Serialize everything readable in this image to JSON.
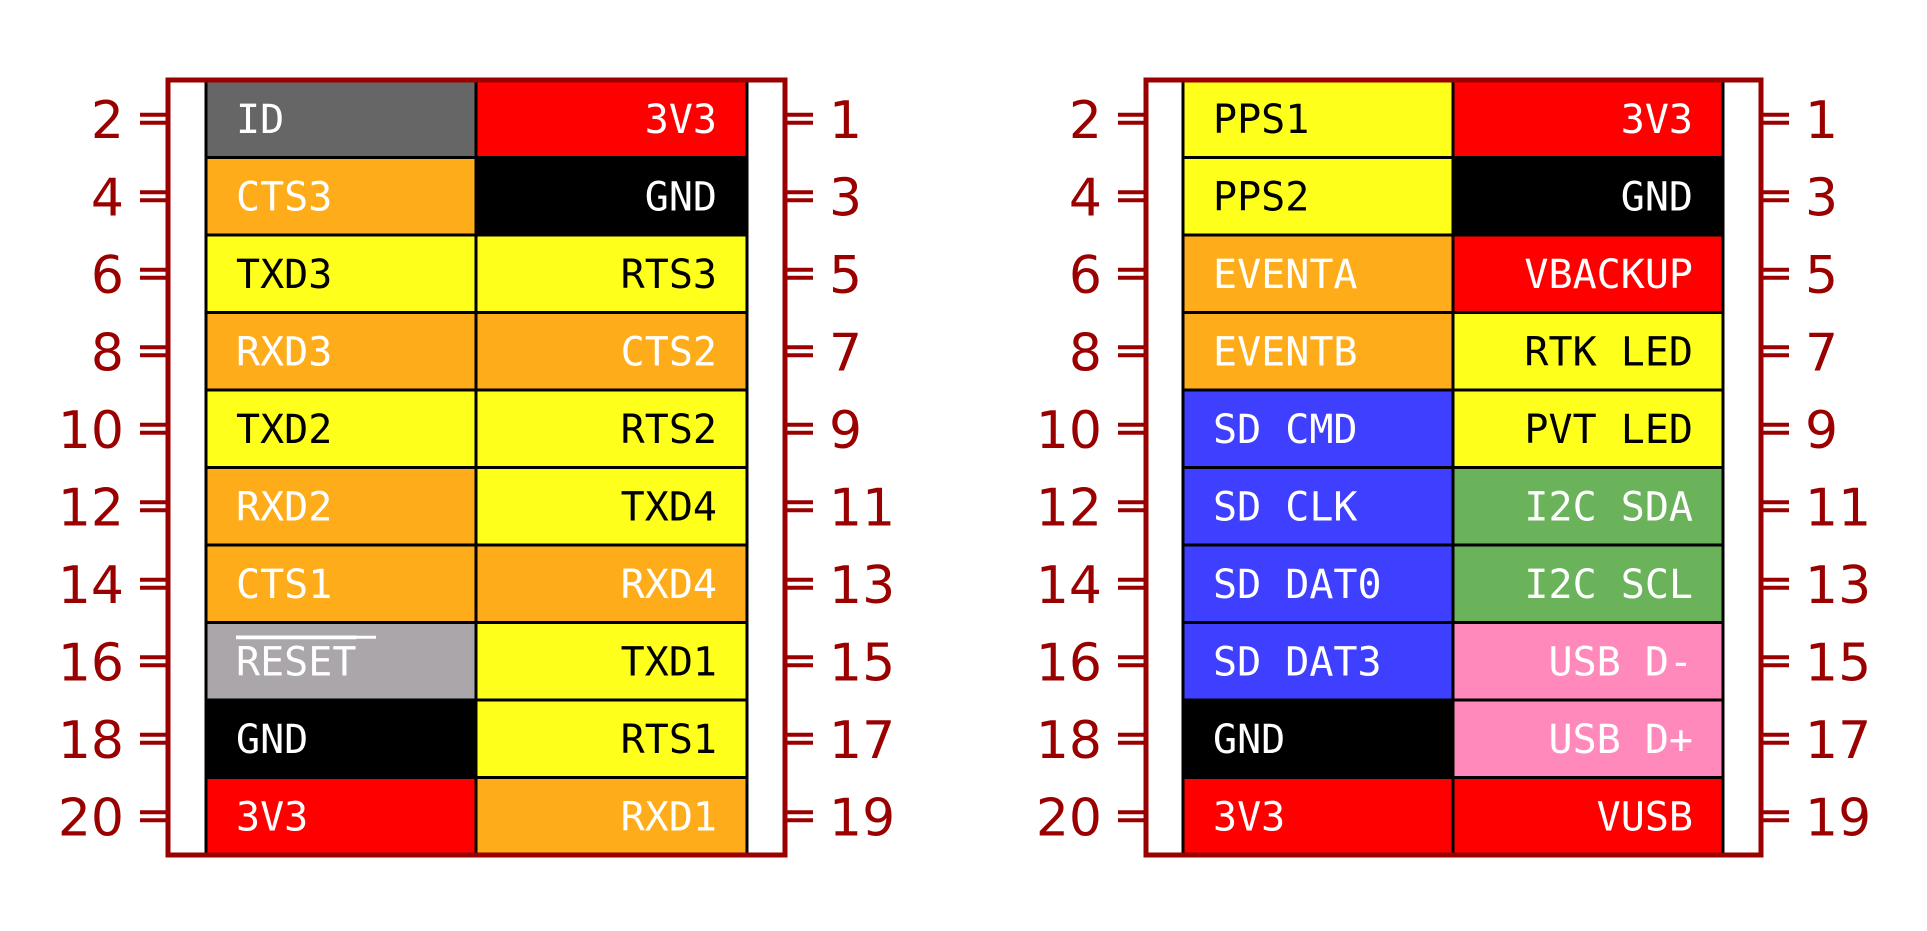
{
  "colors": {
    "outline": "#9a0000",
    "divider": "#000000",
    "body": "#ffffff",
    "swatches": {
      "gray": "#666666",
      "lightgray": "#aaa6aa",
      "red": "#ff0000",
      "black": "#000000",
      "orange": "#ffac1b",
      "yellow": "#ffff1c",
      "blue": "#3f3fff",
      "green": "#6ab35b",
      "pink": "#ff89bb"
    }
  },
  "connectors": [
    {
      "rows": [
        {
          "left": {
            "label": "ID",
            "color": "gray",
            "text": "light"
          },
          "right": {
            "label": "3V3",
            "color": "red",
            "text": "light"
          },
          "left_num": "2",
          "right_num": "1"
        },
        {
          "left": {
            "label": "CTS3",
            "color": "orange",
            "text": "light"
          },
          "right": {
            "label": "GND",
            "color": "black",
            "text": "light"
          },
          "left_num": "4",
          "right_num": "3"
        },
        {
          "left": {
            "label": "TXD3",
            "color": "yellow",
            "text": "dark"
          },
          "right": {
            "label": "RTS3",
            "color": "yellow",
            "text": "dark"
          },
          "left_num": "6",
          "right_num": "5"
        },
        {
          "left": {
            "label": "RXD3",
            "color": "orange",
            "text": "light"
          },
          "right": {
            "label": "CTS2",
            "color": "orange",
            "text": "light"
          },
          "left_num": "8",
          "right_num": "7"
        },
        {
          "left": {
            "label": "TXD2",
            "color": "yellow",
            "text": "dark"
          },
          "right": {
            "label": "RTS2",
            "color": "yellow",
            "text": "dark"
          },
          "left_num": "10",
          "right_num": "9"
        },
        {
          "left": {
            "label": "RXD2",
            "color": "orange",
            "text": "light"
          },
          "right": {
            "label": "TXD4",
            "color": "yellow",
            "text": "dark"
          },
          "left_num": "12",
          "right_num": "11"
        },
        {
          "left": {
            "label": "CTS1",
            "color": "orange",
            "text": "light"
          },
          "right": {
            "label": "RXD4",
            "color": "orange",
            "text": "light"
          },
          "left_num": "14",
          "right_num": "13"
        },
        {
          "left": {
            "label": "RESET",
            "color": "lightgray",
            "text": "light",
            "overline": true
          },
          "right": {
            "label": "TXD1",
            "color": "yellow",
            "text": "dark"
          },
          "left_num": "16",
          "right_num": "15"
        },
        {
          "left": {
            "label": "GND",
            "color": "black",
            "text": "light"
          },
          "right": {
            "label": "RTS1",
            "color": "yellow",
            "text": "dark"
          },
          "left_num": "18",
          "right_num": "17"
        },
        {
          "left": {
            "label": "3V3",
            "color": "red",
            "text": "light"
          },
          "right": {
            "label": "RXD1",
            "color": "orange",
            "text": "light"
          },
          "left_num": "20",
          "right_num": "19"
        }
      ]
    },
    {
      "rows": [
        {
          "left": {
            "label": "PPS1",
            "color": "yellow",
            "text": "dark"
          },
          "right": {
            "label": "3V3",
            "color": "red",
            "text": "light"
          },
          "left_num": "2",
          "right_num": "1"
        },
        {
          "left": {
            "label": "PPS2",
            "color": "yellow",
            "text": "dark"
          },
          "right": {
            "label": "GND",
            "color": "black",
            "text": "light"
          },
          "left_num": "4",
          "right_num": "3"
        },
        {
          "left": {
            "label": "EVENTA",
            "color": "orange",
            "text": "light"
          },
          "right": {
            "label": "VBACKUP",
            "color": "red",
            "text": "light"
          },
          "left_num": "6",
          "right_num": "5"
        },
        {
          "left": {
            "label": "EVENTB",
            "color": "orange",
            "text": "light"
          },
          "right": {
            "label": "RTK LED",
            "color": "yellow",
            "text": "dark"
          },
          "left_num": "8",
          "right_num": "7"
        },
        {
          "left": {
            "label": "SD CMD",
            "color": "blue",
            "text": "light"
          },
          "right": {
            "label": "PVT LED",
            "color": "yellow",
            "text": "dark"
          },
          "left_num": "10",
          "right_num": "9"
        },
        {
          "left": {
            "label": "SD CLK",
            "color": "blue",
            "text": "light"
          },
          "right": {
            "label": "I2C SDA",
            "color": "green",
            "text": "light"
          },
          "left_num": "12",
          "right_num": "11"
        },
        {
          "left": {
            "label": "SD DAT0",
            "color": "blue",
            "text": "light"
          },
          "right": {
            "label": "I2C SCL",
            "color": "green",
            "text": "light"
          },
          "left_num": "14",
          "right_num": "13"
        },
        {
          "left": {
            "label": "SD DAT3",
            "color": "blue",
            "text": "light"
          },
          "right": {
            "label": "USB D-",
            "color": "pink",
            "text": "light"
          },
          "left_num": "16",
          "right_num": "15"
        },
        {
          "left": {
            "label": "GND",
            "color": "black",
            "text": "light"
          },
          "right": {
            "label": "USB D+",
            "color": "pink",
            "text": "light"
          },
          "left_num": "18",
          "right_num": "17"
        },
        {
          "left": {
            "label": "3V3",
            "color": "red",
            "text": "light"
          },
          "right": {
            "label": "VUSB",
            "color": "red",
            "text": "light"
          },
          "left_num": "20",
          "right_num": "19"
        }
      ]
    }
  ]
}
